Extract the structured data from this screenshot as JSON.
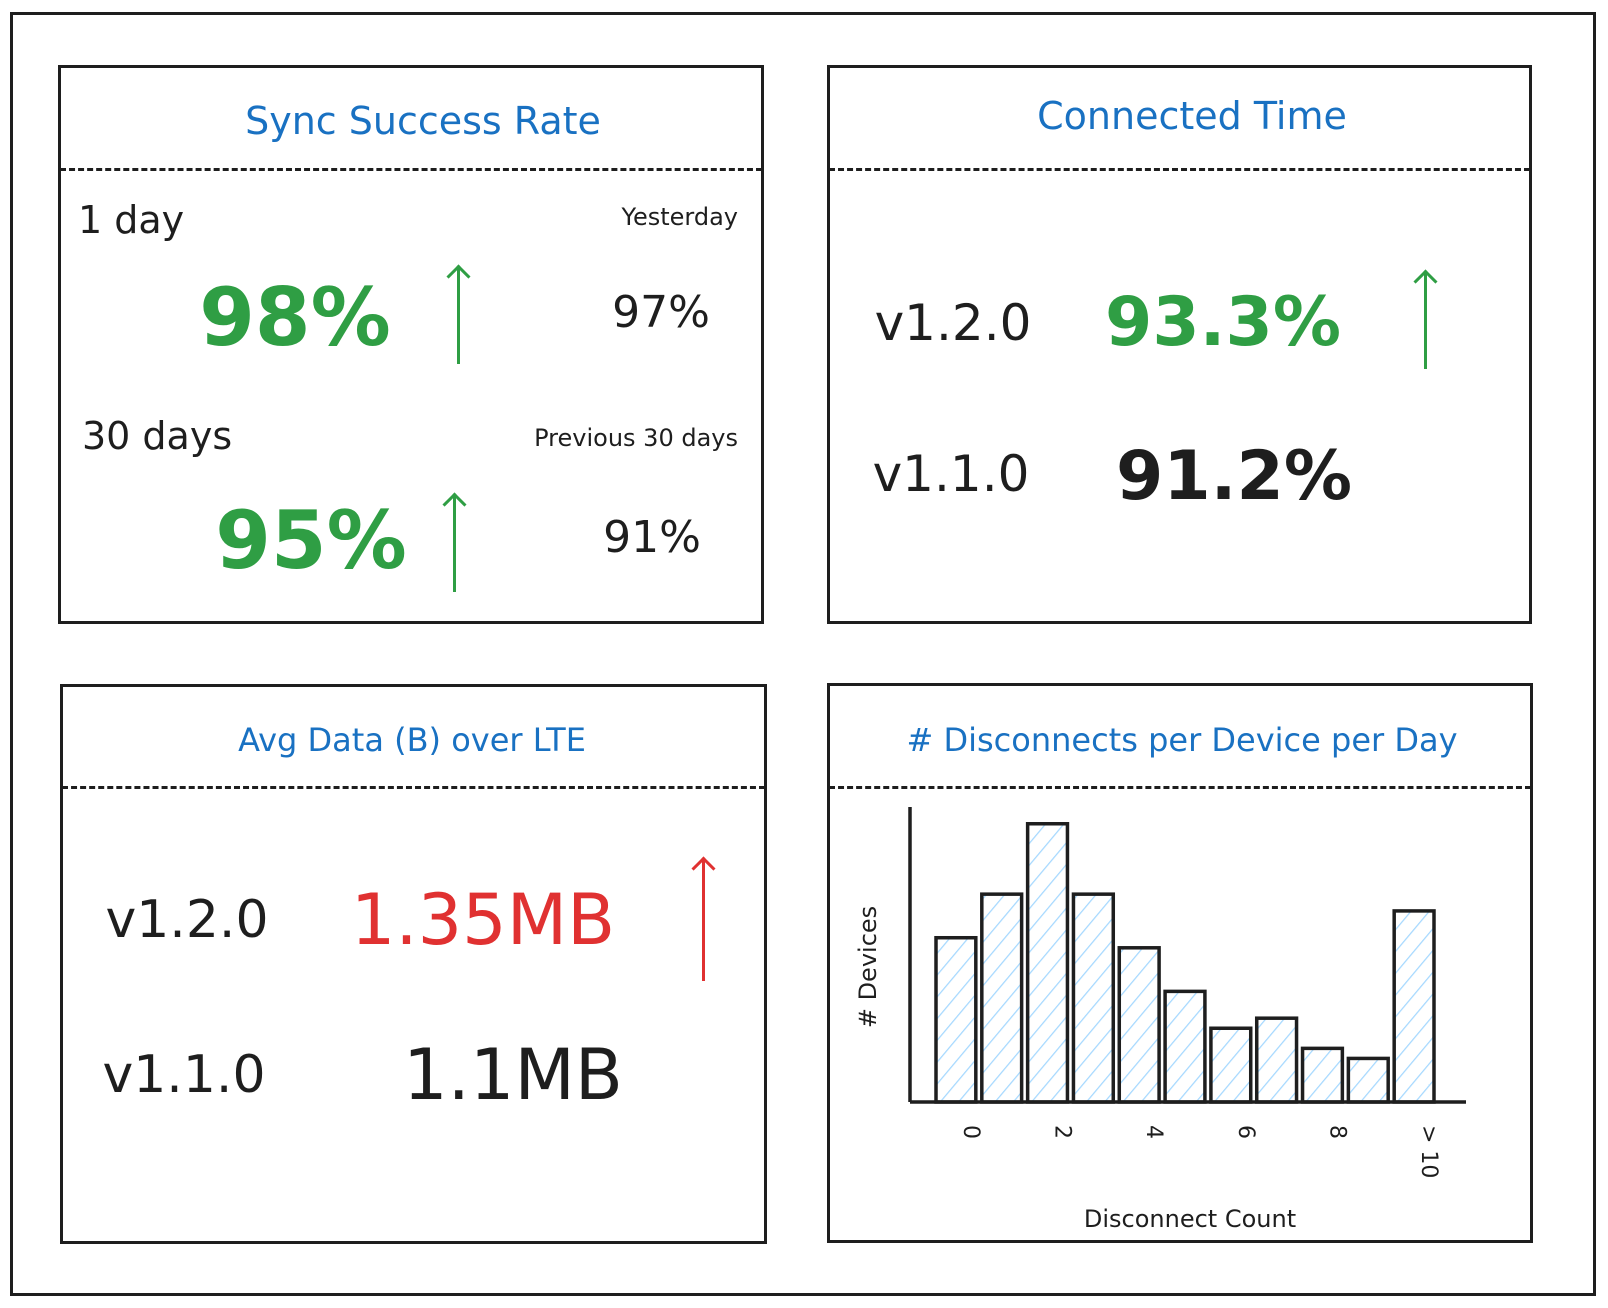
{
  "colors": {
    "title": "#1971c2",
    "up_good": "#2f9e44",
    "up_bad": "#e03131",
    "hatch": "#a5d8ff",
    "ink": "#1e1e1e"
  },
  "sync": {
    "title": "Sync Success Rate",
    "day_label": "1 day",
    "day_value": "98%",
    "day_trend": "arrow-up",
    "yesterday_label": "Yesterday",
    "yesterday_value": "97%",
    "month_label": "30 days",
    "month_value": "95%",
    "month_trend": "arrow-up",
    "prev_label": "Previous 30 days",
    "prev_value": "91%"
  },
  "connected": {
    "title": "Connected Time",
    "rows": [
      {
        "version": "v1.2.0",
        "value": "93.3%",
        "trend": "arrow-up"
      },
      {
        "version": "v1.1.0",
        "value": "91.2%"
      }
    ]
  },
  "lte": {
    "title": "Avg Data (B) over LTE",
    "rows": [
      {
        "version": "v1.2.0",
        "value": "1.35MB",
        "trend": "arrow-up"
      },
      {
        "version": "v1.1.0",
        "value": "1.1MB"
      }
    ]
  },
  "disconnects": {
    "title": "# Disconnects per Device per Day"
  },
  "chart_data": {
    "type": "bar",
    "title": "# Disconnects per Device per Day",
    "xlabel": "Disconnect Count",
    "ylabel": "# Devices",
    "categories": [
      "0",
      "1",
      "2",
      "3",
      "4",
      "5",
      "6",
      "7",
      "8",
      "9",
      "> 10"
    ],
    "tick_labels": [
      "0",
      "2",
      "4",
      "6",
      "8",
      "> 10"
    ],
    "values": [
      49,
      62,
      83,
      62,
      46,
      33,
      22,
      25,
      16,
      13,
      57
    ],
    "ylim": [
      0,
      88
    ],
    "grid": false,
    "fill": "hatched light blue"
  }
}
